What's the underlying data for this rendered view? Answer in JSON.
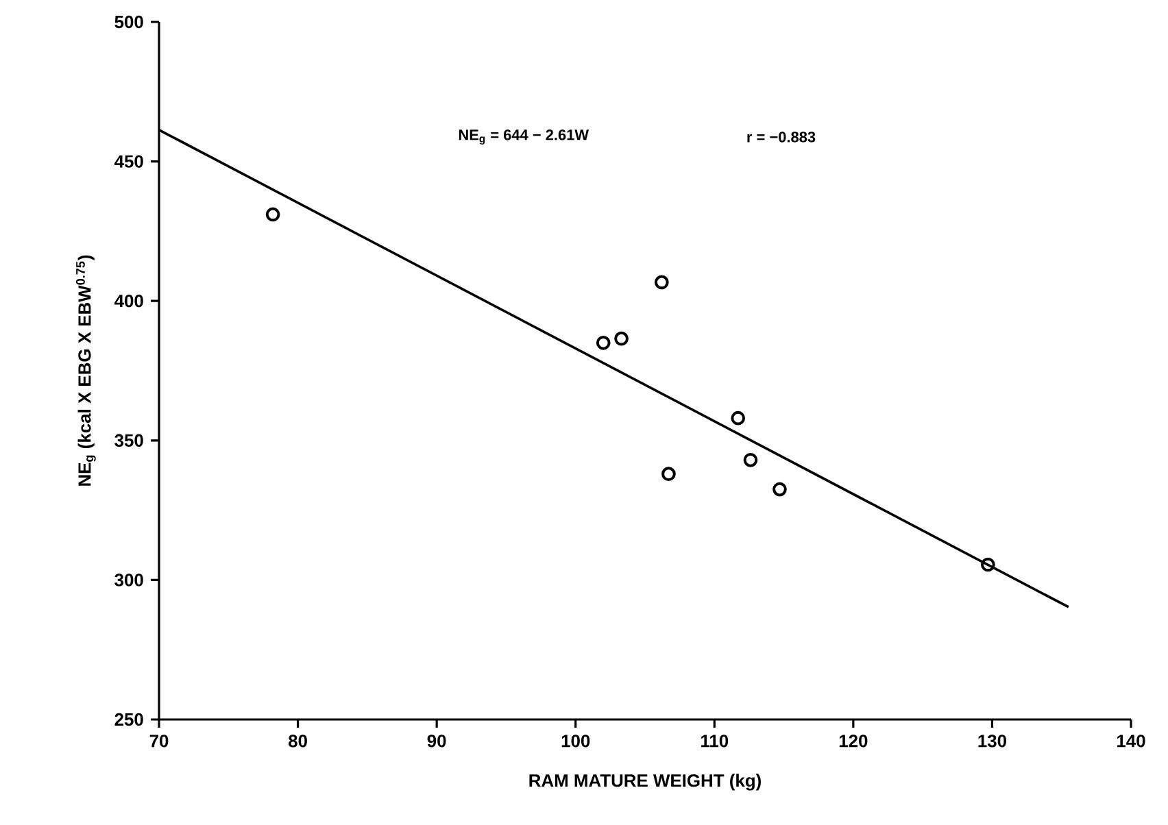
{
  "chart_data": {
    "type": "scatter",
    "xlabel": "RAM MATURE WEIGHT (kg)",
    "ylabel": "NE$_{g}$ (kcal X EBG X EBW$^{0.75}$)",
    "annotations": [
      "NE$_{g}$ = 644 − 2.61W",
      "r = −0.883"
    ],
    "xlim": [
      70,
      140
    ],
    "xticks": [
      70,
      80,
      90,
      100,
      110,
      120,
      130,
      140
    ],
    "ylim": [
      250,
      500
    ],
    "yticks": [
      250,
      300,
      350,
      400,
      450,
      500
    ],
    "grid": false,
    "series": [
      {
        "color": "#000000",
        "marker": "circle",
        "x": [
          78.2,
          102.0,
          103.3,
          106.2,
          106.7,
          111.7,
          112.6,
          114.7,
          129.7
        ],
        "values": [
          431,
          385,
          386.5,
          406.7,
          338,
          358,
          343,
          332.5,
          305.5
        ]
      },
      {
        "type": "line",
        "color": "#000000",
        "marker": "none",
        "line_style": "solid",
        "x": [
          70,
          135.5
        ],
        "values": [
          461.3,
          290.3
        ]
      }
    ]
  }
}
